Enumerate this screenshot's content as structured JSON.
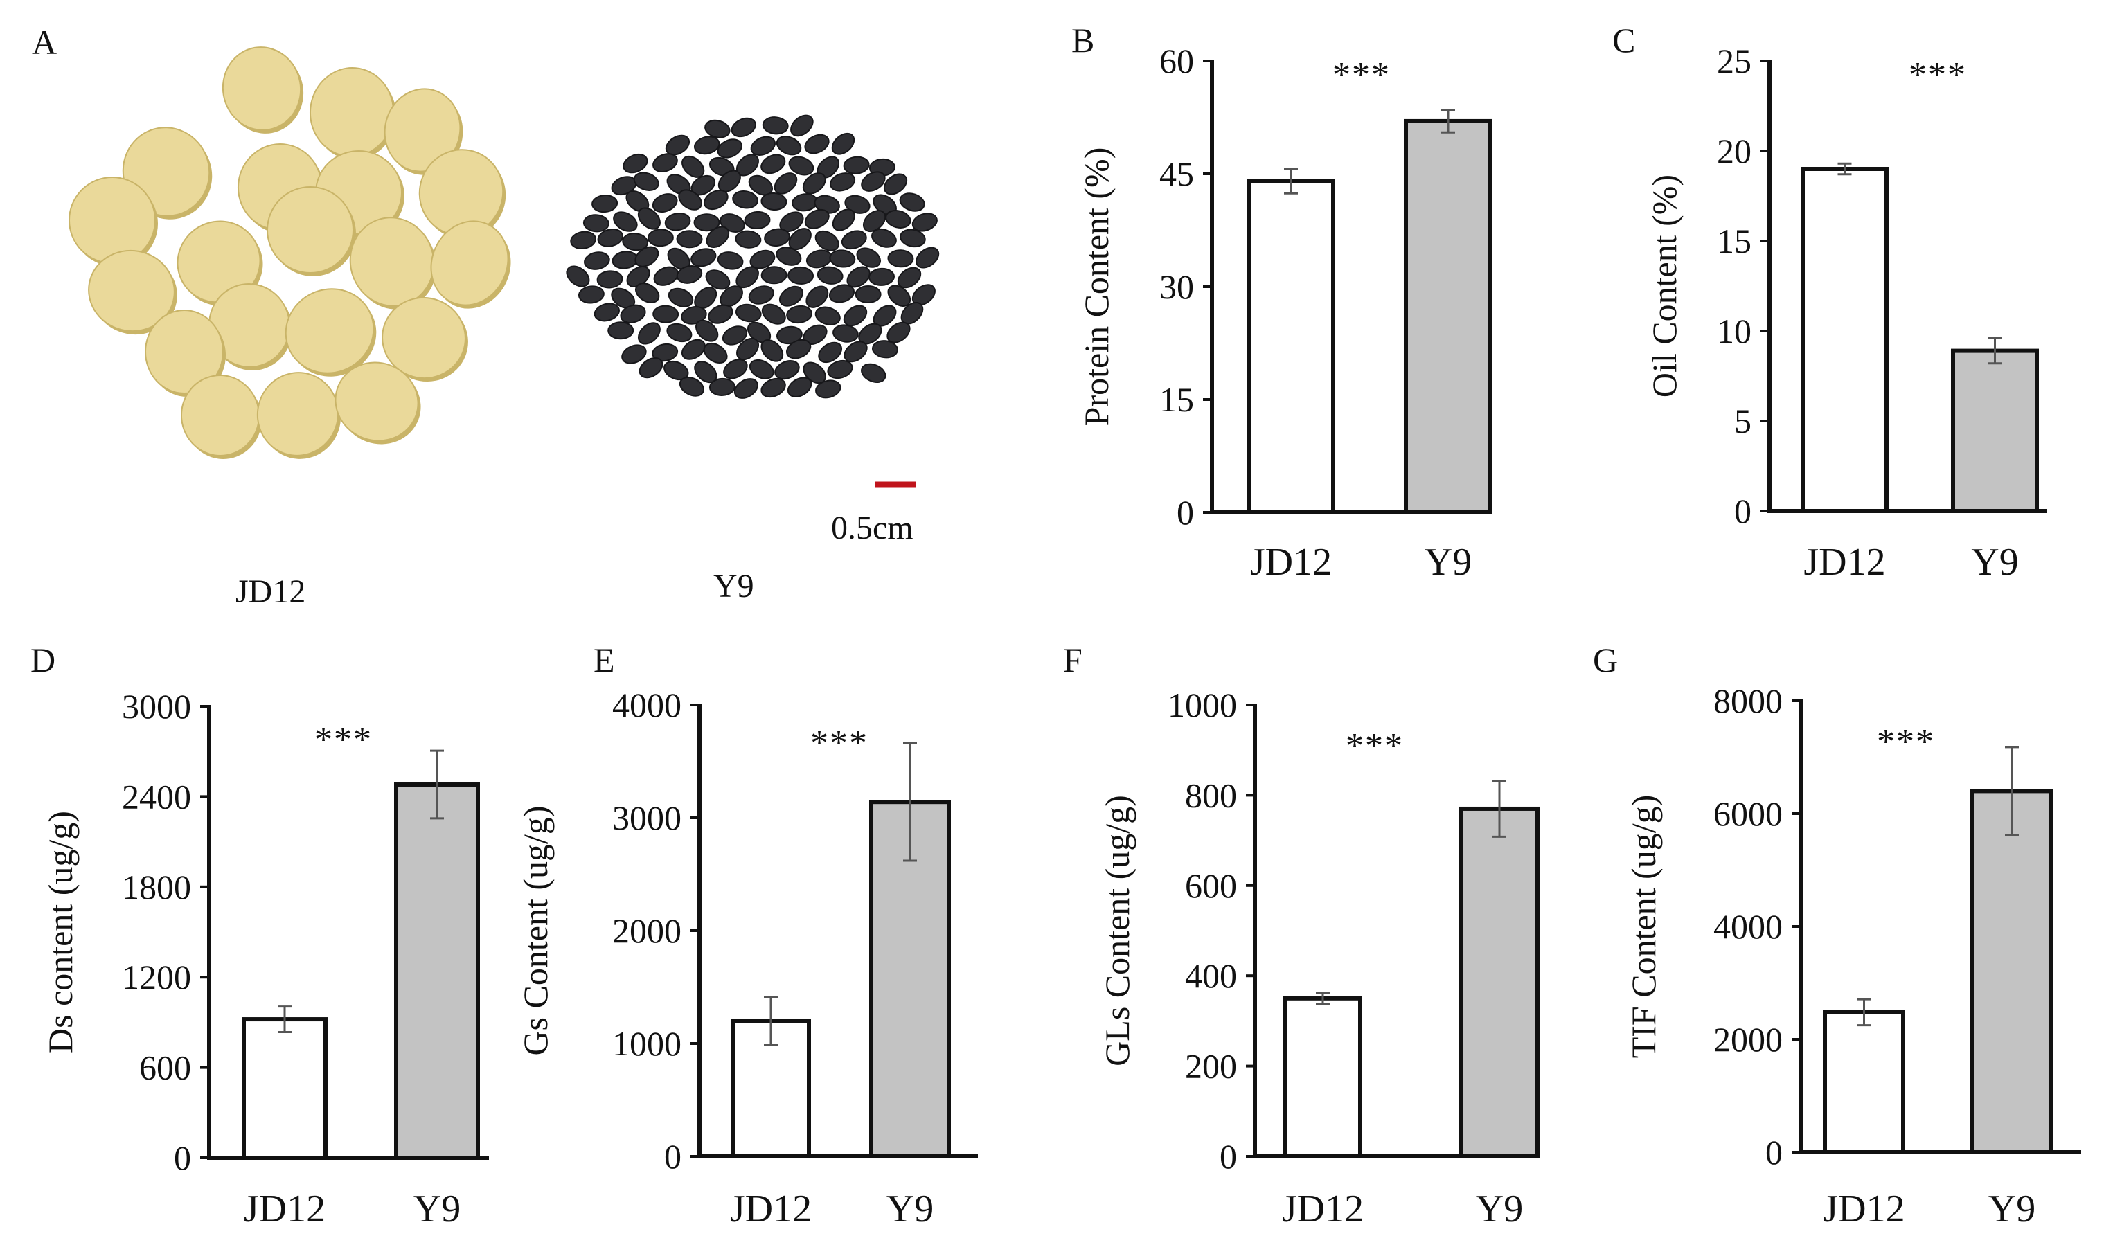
{
  "panel_a": {
    "letter": "A",
    "left_label": "JD12",
    "right_label": "Y9",
    "scale_bar_label": "0.5cm",
    "colors": {
      "yellow_seed": "#ead99a",
      "yellow_seed_shade": "#c9b468",
      "black_seed": "#2f2f33",
      "black_seed_shade": "#17171a",
      "scale_bar": "#c0141c"
    }
  },
  "colors": {
    "jd12_fill": "#ffffff",
    "y9_fill": "#c3c3c3",
    "axis": "#111111",
    "error_bar": "#555555"
  },
  "chart_data": [
    {
      "letter": "B",
      "type": "bar",
      "title": "",
      "xlabel": "",
      "ylabel": "Protein Content (%)",
      "categories": [
        "JD12",
        "Y9"
      ],
      "values": [
        44.0,
        52.0
      ],
      "errors": [
        1.6,
        1.5
      ],
      "ylim": [
        0,
        60
      ],
      "ticks": [
        0,
        15,
        30,
        45,
        60
      ],
      "tick_labels": [
        "0",
        "15",
        "30",
        "45",
        "60"
      ],
      "significance": "***"
    },
    {
      "letter": "C",
      "type": "bar",
      "title": "",
      "xlabel": "",
      "ylabel": "Oil Content (%)",
      "categories": [
        "JD12",
        "Y9"
      ],
      "values": [
        19.0,
        8.9
      ],
      "errors": [
        0.3,
        0.7
      ],
      "ylim": [
        0,
        25
      ],
      "ticks": [
        0,
        5,
        10,
        15,
        20,
        25
      ],
      "tick_labels": [
        "0",
        "5",
        "10",
        "15",
        "20",
        "25"
      ],
      "significance": "***"
    },
    {
      "letter": "D",
      "type": "bar",
      "title": "",
      "xlabel": "",
      "ylabel": "Ds content (ug/g)",
      "categories": [
        "JD12",
        "Y9"
      ],
      "values": [
        920,
        2480
      ],
      "errors": [
        85,
        225
      ],
      "ylim": [
        0,
        3000
      ],
      "ticks": [
        0,
        600,
        1200,
        1800,
        2400,
        3000
      ],
      "tick_labels": [
        "0",
        "600",
        "1200",
        "1800",
        "2400",
        "3000"
      ],
      "significance": "***"
    },
    {
      "letter": "E",
      "type": "bar",
      "title": "",
      "xlabel": "",
      "ylabel": "Gs Content (ug/g)",
      "categories": [
        "JD12",
        "Y9"
      ],
      "values": [
        1200,
        3140
      ],
      "errors": [
        210,
        520
      ],
      "ylim": [
        0,
        4000
      ],
      "ticks": [
        0,
        1000,
        2000,
        3000,
        4000
      ],
      "tick_labels": [
        "0",
        "1000",
        "2000",
        "3000",
        "4000"
      ],
      "significance": "***"
    },
    {
      "letter": "F",
      "type": "bar",
      "title": "",
      "xlabel": "",
      "ylabel": "GLs Content (ug/g)",
      "categories": [
        "JD12",
        "Y9"
      ],
      "values": [
        350,
        770
      ],
      "errors": [
        12,
        62
      ],
      "ylim": [
        0,
        1000
      ],
      "ticks": [
        0,
        200,
        400,
        600,
        800,
        1000
      ],
      "tick_labels": [
        "0",
        "200",
        "400",
        "600",
        "800",
        "1000"
      ],
      "significance": "***"
    },
    {
      "letter": "G",
      "type": "bar",
      "title": "",
      "xlabel": "",
      "ylabel": "TIF Content (ug/g)",
      "categories": [
        "JD12",
        "Y9"
      ],
      "values": [
        2480,
        6400
      ],
      "errors": [
        230,
        780
      ],
      "ylim": [
        0,
        8000
      ],
      "ticks": [
        0,
        2000,
        4000,
        6000,
        8000
      ],
      "tick_labels": [
        "0",
        "2000",
        "4000",
        "6000",
        "8000"
      ],
      "significance": "***"
    }
  ]
}
